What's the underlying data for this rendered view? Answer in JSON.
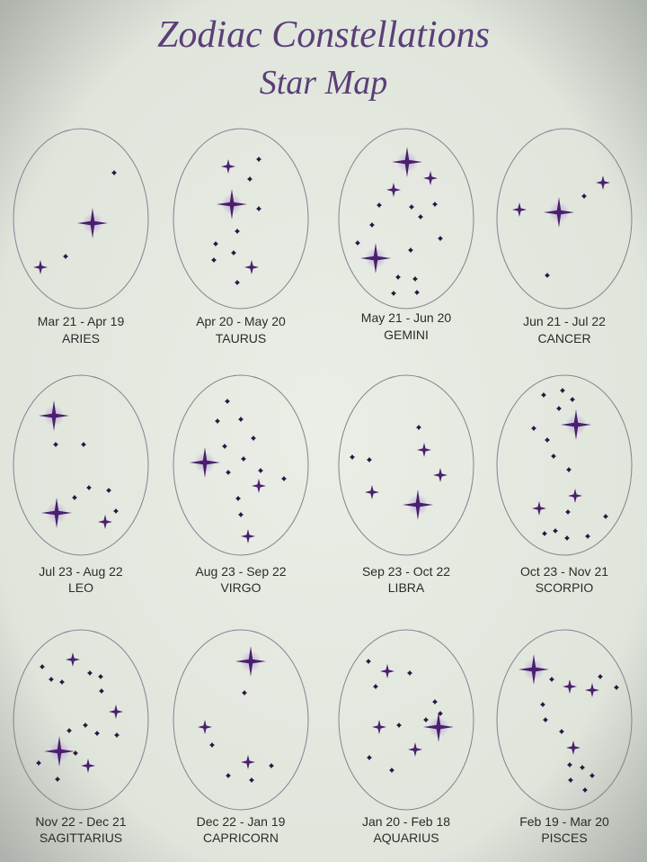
{
  "header": {
    "title": "Zodiac Constellations",
    "subtitle": "Star Map"
  },
  "signs": [
    {
      "dates": "Mar 21 - Apr 19",
      "name": "ARIES"
    },
    {
      "dates": "Apr 20 - May 20",
      "name": "TAURUS"
    },
    {
      "dates": "May 21 - Jun 20",
      "name": "GEMINI"
    },
    {
      "dates": "Jun 21 - Jul 22",
      "name": "CANCER"
    },
    {
      "dates": "Jul 23 - Aug 22",
      "name": "LEO"
    },
    {
      "dates": "Aug 23 - Sep 22",
      "name": "VIRGO"
    },
    {
      "dates": "Sep 23 - Oct 22",
      "name": "LIBRA"
    },
    {
      "dates": "Oct 23 - Nov 21",
      "name": "SCORPIO"
    },
    {
      "dates": "Nov 22 - Dec 21",
      "name": "SAGITTARIUS"
    },
    {
      "dates": "Dec 22 - Jan 19",
      "name": "CAPRICORN"
    },
    {
      "dates": "Jan 20 - Feb 18",
      "name": "AQUARIUS"
    },
    {
      "dates": "Feb 19 - Mar 20",
      "name": "PISCES"
    }
  ]
}
